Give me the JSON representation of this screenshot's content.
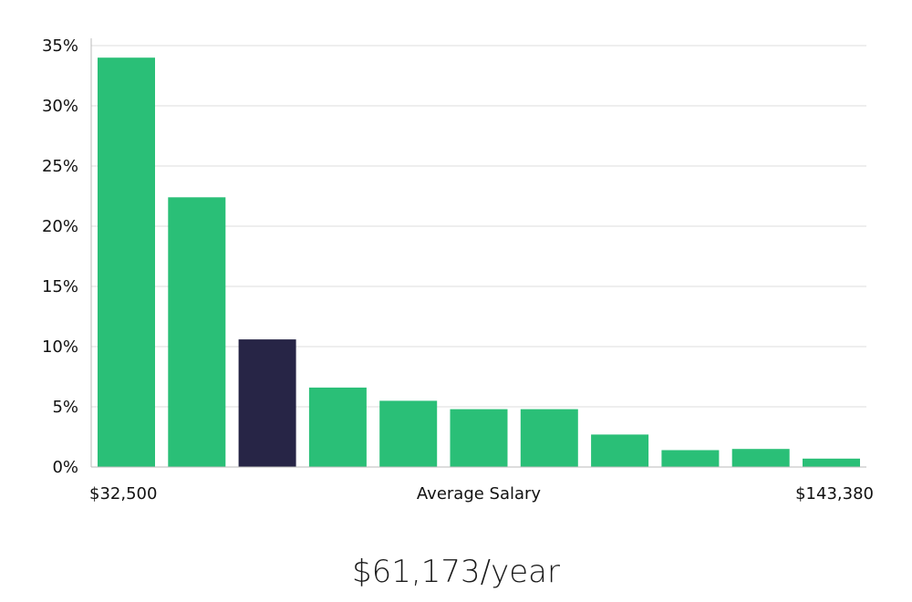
{
  "chart_data": {
    "type": "bar",
    "values": [
      34.0,
      22.4,
      10.6,
      6.6,
      5.5,
      4.8,
      4.8,
      2.7,
      1.4,
      1.5,
      0.7
    ],
    "highlight_index": 2,
    "y_ticks": [
      "0%",
      "5%",
      "10%",
      "15%",
      "20%",
      "25%",
      "30%",
      "35%"
    ],
    "ylim": [
      0,
      35
    ],
    "grid": true,
    "x_min_label": "$32,500",
    "x_max_label": "$143,380",
    "xlabel": "Average Salary"
  },
  "summary": {
    "salary_text": "$61,173/year"
  },
  "colors": {
    "bar": "#2abf77",
    "highlight_bar": "#272546",
    "grid": "#dcdcdc",
    "axis": "#bbbbbb",
    "text": "#111111"
  }
}
